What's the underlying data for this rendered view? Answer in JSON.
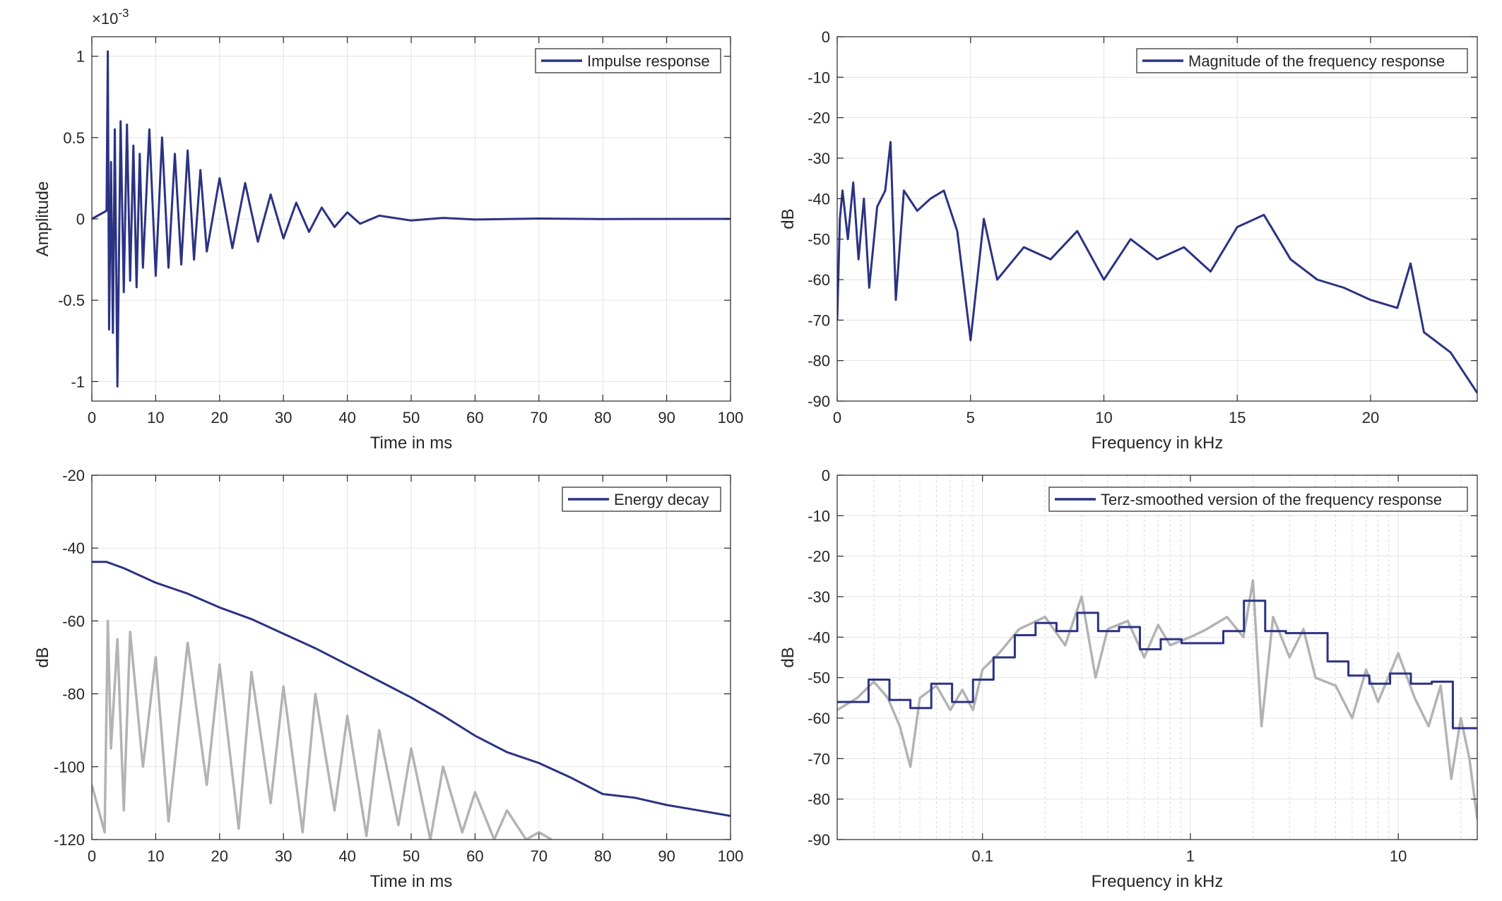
{
  "chart_data": [
    {
      "id": "impulse",
      "type": "line",
      "title": "",
      "xlabel": "Time in ms",
      "ylabel": "Amplitude",
      "exponent_label": "×10",
      "exponent_power": "-3",
      "xlim": [
        0,
        100
      ],
      "ylim": [
        -1.12,
        1.12
      ],
      "xticks": [
        0,
        10,
        20,
        30,
        40,
        50,
        60,
        70,
        80,
        90,
        100
      ],
      "xticklabels": [
        "0",
        "10",
        "20",
        "30",
        "40",
        "50",
        "60",
        "70",
        "80",
        "90",
        "100"
      ],
      "yticks": [
        1,
        0.5,
        0,
        -0.5,
        -1
      ],
      "yticklabels": [
        "1",
        "0.5",
        "0",
        "-0.5",
        "-1"
      ],
      "xscale": "linear",
      "grid": true,
      "legend_position": "top-right",
      "series": [
        {
          "name": "Impulse response",
          "color": "#2b3383",
          "x": [
            0,
            2.3,
            2.5,
            2.7,
            3.0,
            3.3,
            3.6,
            4.0,
            4.5,
            5.0,
            5.5,
            6.0,
            6.5,
            7.0,
            7.5,
            8.0,
            9.0,
            10.0,
            11.0,
            12.0,
            13.0,
            14.0,
            15.0,
            16.0,
            17.0,
            18.0,
            20.0,
            22.0,
            24.0,
            26.0,
            28.0,
            30.0,
            32.0,
            34.0,
            36.0,
            38.0,
            40.0,
            42.0,
            45.0,
            50.0,
            55.0,
            60.0,
            70.0,
            80.0,
            100.0
          ],
          "values": [
            0,
            0.05,
            1.03,
            -0.68,
            0.35,
            -0.7,
            0.55,
            -1.03,
            0.6,
            -0.45,
            0.58,
            -0.38,
            0.45,
            -0.42,
            0.4,
            -0.3,
            0.55,
            -0.35,
            0.5,
            -0.3,
            0.4,
            -0.28,
            0.42,
            -0.25,
            0.3,
            -0.2,
            0.25,
            -0.18,
            0.22,
            -0.14,
            0.15,
            -0.12,
            0.1,
            -0.08,
            0.07,
            -0.05,
            0.04,
            -0.03,
            0.02,
            -0.01,
            0.006,
            -0.004,
            0.002,
            -0.001,
            0
          ]
        }
      ]
    },
    {
      "id": "magnitude",
      "type": "line",
      "title": "",
      "xlabel": "Frequency in kHz",
      "ylabel": "dB",
      "xlim": [
        0,
        24
      ],
      "ylim": [
        -90,
        0
      ],
      "xticks": [
        0,
        5,
        10,
        15,
        20
      ],
      "xticklabels": [
        "0",
        "5",
        "10",
        "15",
        "20"
      ],
      "yticks": [
        0,
        -10,
        -20,
        -30,
        -40,
        -50,
        -60,
        -70,
        -80,
        -90
      ],
      "yticklabels": [
        "0",
        "-10",
        "-20",
        "-30",
        "-40",
        "-50",
        "-60",
        "-70",
        "-80",
        "-90"
      ],
      "xscale": "linear",
      "grid": true,
      "legend_position": "top-right",
      "series": [
        {
          "name": "Magnitude of the frequency response",
          "color": "#2b3383",
          "x": [
            0,
            0.1,
            0.2,
            0.4,
            0.6,
            0.8,
            1.0,
            1.2,
            1.5,
            1.8,
            2.0,
            2.2,
            2.5,
            3.0,
            3.5,
            4.0,
            4.5,
            5.0,
            5.5,
            6.0,
            7.0,
            8.0,
            9.0,
            10.0,
            11.0,
            12.0,
            13.0,
            14.0,
            15.0,
            16.0,
            17.0,
            18.0,
            19.0,
            20.0,
            21.0,
            21.5,
            22.0,
            23.0,
            24.0
          ],
          "values": [
            -70,
            -45,
            -38,
            -50,
            -36,
            -55,
            -40,
            -62,
            -42,
            -38,
            -26,
            -65,
            -38,
            -43,
            -40,
            -38,
            -48,
            -75,
            -45,
            -60,
            -52,
            -55,
            -48,
            -60,
            -50,
            -55,
            -52,
            -58,
            -47,
            -44,
            -55,
            -60,
            -62,
            -65,
            -67,
            -56,
            -73,
            -78,
            -88
          ]
        }
      ]
    },
    {
      "id": "energy",
      "type": "line",
      "title": "",
      "xlabel": "Time in ms",
      "ylabel": "dB",
      "xlim": [
        0,
        100
      ],
      "ylim": [
        -120,
        -20
      ],
      "xticks": [
        0,
        10,
        20,
        30,
        40,
        50,
        60,
        70,
        80,
        90,
        100
      ],
      "xticklabels": [
        "0",
        "10",
        "20",
        "30",
        "40",
        "50",
        "60",
        "70",
        "80",
        "90",
        "100"
      ],
      "yticks": [
        -20,
        -40,
        -60,
        -80,
        -100,
        -120
      ],
      "yticklabels": [
        "-20",
        "-40",
        "-60",
        "-80",
        "-100",
        "-120"
      ],
      "xscale": "linear",
      "grid": true,
      "legend_position": "top-right",
      "series": [
        {
          "name": "Energy decay",
          "color": "#2b3383",
          "x": [
            0,
            2.3,
            5,
            10,
            15,
            20,
            25,
            30,
            35,
            40,
            45,
            50,
            55,
            60,
            65,
            70,
            75,
            80,
            85,
            90,
            95,
            100
          ],
          "values": [
            -43.8,
            -43.8,
            -45.5,
            -49.5,
            -52.5,
            -56.3,
            -59.5,
            -63.5,
            -67.5,
            -72.0,
            -76.5,
            -81.0,
            -86.0,
            -91.5,
            -96.0,
            -99.0,
            -103.0,
            -107.5,
            -108.5,
            -110.5,
            -112.0,
            -113.5
          ]
        },
        {
          "name": "",
          "color": "#b3b3b3",
          "x": [
            0,
            2.0,
            2.5,
            3.0,
            4.0,
            5.0,
            6.0,
            8.0,
            10.0,
            12.0,
            15.0,
            18.0,
            20.0,
            23.0,
            25.0,
            28.0,
            30.0,
            33.0,
            35.0,
            38.0,
            40.0,
            43.0,
            45.0,
            48.0,
            50.0,
            53.0,
            55.0,
            58.0,
            60.0,
            63.0,
            65.0,
            68.0,
            70.0,
            72.0
          ],
          "values": [
            -105,
            -118,
            -60,
            -95,
            -65,
            -112,
            -63,
            -100,
            -70,
            -115,
            -66,
            -105,
            -72,
            -117,
            -74,
            -110,
            -78,
            -118,
            -80,
            -112,
            -86,
            -119,
            -90,
            -116,
            -95,
            -120,
            -100,
            -118,
            -107,
            -120,
            -112,
            -120,
            -118,
            -120
          ]
        }
      ]
    },
    {
      "id": "terz",
      "type": "line",
      "title": "",
      "xlabel": "Frequency in kHz",
      "ylabel": "dB",
      "xlim": [
        0.02,
        24
      ],
      "ylim": [
        -90,
        0
      ],
      "xticks": [
        0.1,
        1,
        10
      ],
      "xticklabels": [
        "0.1",
        "1",
        "10"
      ],
      "yticks": [
        0,
        -10,
        -20,
        -30,
        -40,
        -50,
        -60,
        -70,
        -80,
        -90
      ],
      "yticklabels": [
        "0",
        "-10",
        "-20",
        "-30",
        "-40",
        "-50",
        "-60",
        "-70",
        "-80",
        "-90"
      ],
      "xscale": "log",
      "grid": true,
      "legend_position": "top-right",
      "series": [
        {
          "name": "Terz-smoothed version of the frequency response",
          "color": "#2b3383",
          "step": true,
          "x": [
            0.02,
            0.0283,
            0.0357,
            0.045,
            0.0567,
            0.0714,
            0.09,
            0.113,
            0.143,
            0.18,
            0.227,
            0.286,
            0.36,
            0.454,
            0.572,
            0.72,
            0.907,
            1.14,
            1.44,
            1.81,
            2.29,
            2.88,
            3.63,
            4.57,
            5.76,
            7.26,
            9.14,
            11.5,
            14.5,
            18.3,
            24
          ],
          "values": [
            -56,
            -50.5,
            -55.5,
            -57.5,
            -51.5,
            -56,
            -50.5,
            -45,
            -39.5,
            -36.5,
            -38.5,
            -34,
            -38.5,
            -37.5,
            -43,
            -40.5,
            -41.5,
            -41.5,
            -38.5,
            -31,
            -38.5,
            -39,
            -39,
            -46,
            -49.5,
            -51.5,
            -49,
            -51.5,
            -51,
            -62.5,
            -62.5
          ]
        },
        {
          "name": "",
          "color": "#b3b3b3",
          "x": [
            0.02,
            0.025,
            0.03,
            0.035,
            0.04,
            0.045,
            0.05,
            0.06,
            0.07,
            0.08,
            0.09,
            0.1,
            0.12,
            0.15,
            0.2,
            0.25,
            0.3,
            0.35,
            0.4,
            0.5,
            0.6,
            0.7,
            0.8,
            1.0,
            1.2,
            1.5,
            1.8,
            2.0,
            2.2,
            2.5,
            3.0,
            3.5,
            4.0,
            5.0,
            6.0,
            7.0,
            8.0,
            10.0,
            12.0,
            14.0,
            16.0,
            18.0,
            20.0,
            22.0,
            24.0
          ],
          "values": [
            -58,
            -55,
            -51,
            -55,
            -62,
            -72,
            -55,
            -52,
            -58,
            -53,
            -58,
            -48,
            -44,
            -38,
            -35,
            -42,
            -30,
            -50,
            -38,
            -36,
            -45,
            -37,
            -42,
            -40,
            -38,
            -35,
            -40,
            -26,
            -62,
            -35,
            -45,
            -38,
            -50,
            -52,
            -60,
            -48,
            -56,
            -44,
            -55,
            -62,
            -52,
            -75,
            -60,
            -70,
            -85
          ]
        }
      ]
    }
  ]
}
